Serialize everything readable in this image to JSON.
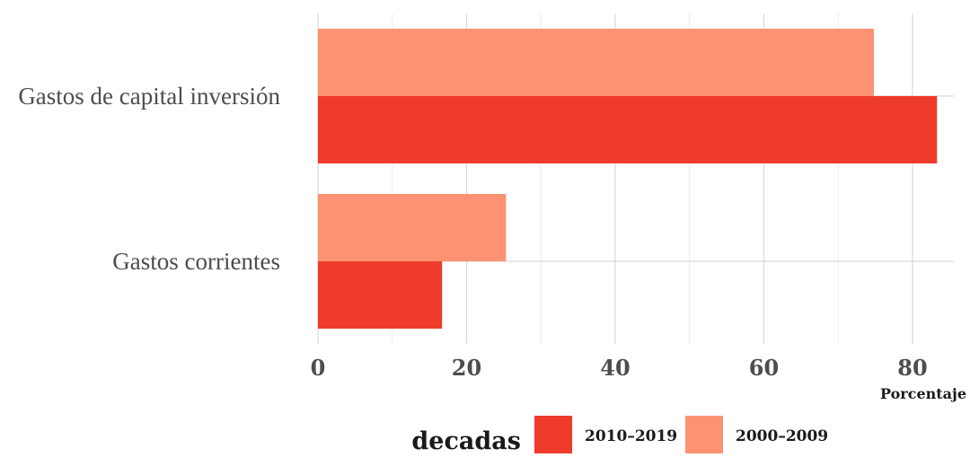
{
  "chart_data": {
    "type": "bar",
    "orientation": "horizontal",
    "categories": [
      "Gastos de capital inversión",
      "Gastos corrientes"
    ],
    "series": [
      {
        "name": "2010–2019",
        "color": "#EF3B2C",
        "values": [
          83.3,
          16.7
        ]
      },
      {
        "name": "2000–2009",
        "color": "#FC9272",
        "values": [
          74.8,
          25.3
        ]
      }
    ],
    "xlabel": "Porcentaje",
    "ylabel": "",
    "xlim": [
      0,
      85
    ],
    "xticks": [
      0,
      20,
      40,
      60,
      80
    ],
    "grid": true,
    "legend": {
      "title": "decadas",
      "position": "bottom"
    }
  }
}
